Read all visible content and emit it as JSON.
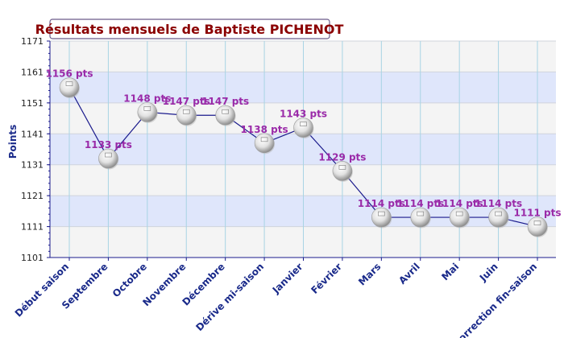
{
  "chart_data": {
    "type": "line",
    "title": "Résultats mensuels de Baptiste PICHENOT",
    "xlabel": "",
    "ylabel": "Points",
    "categories": [
      "Début saison",
      "Septembre",
      "Octobre",
      "Novembre",
      "Décembre",
      "Dérive mi-saison",
      "Janvier",
      "Février",
      "Mars",
      "Avril",
      "Mai",
      "Juin",
      "Correction fin-saison"
    ],
    "values": [
      1156,
      1133,
      1148,
      1147,
      1147,
      1138,
      1143,
      1129,
      1114,
      1114,
      1114,
      1114,
      1111
    ],
    "data_labels": [
      "1156 pts",
      "1133 pts",
      "1148 pts",
      "1147 pts",
      "1147 pts",
      "1138 pts",
      "1143 pts",
      "1129 pts",
      "1114 pts",
      "1114 pts",
      "1114 pts",
      "1114 pts",
      "1111 pts"
    ],
    "yticks": [
      1101,
      1111,
      1121,
      1131,
      1141,
      1151,
      1161,
      1171
    ],
    "ylim": [
      1101,
      1171
    ],
    "grid": true,
    "colors": {
      "line": "#1a1a8c",
      "band": "#dfe6fb",
      "plot_bg": "#f4f4f4",
      "title": "#8b0000",
      "labels": "#9a2aa8",
      "axis_text": "#1a2a8a"
    }
  }
}
